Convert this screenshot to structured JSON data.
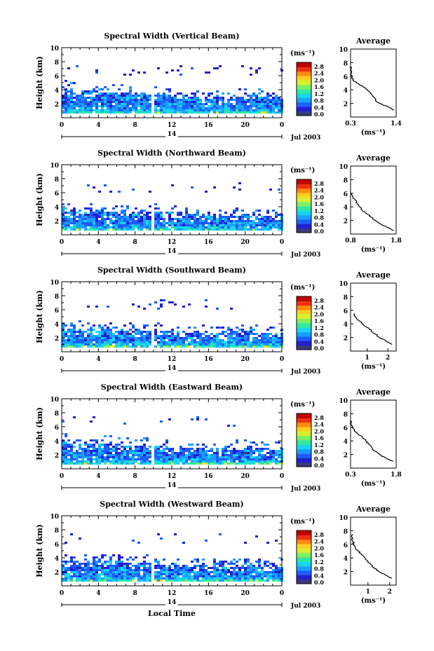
{
  "figure": {
    "xlabel": "Local Time",
    "date_label": "Jul 2003",
    "day_label": "14",
    "colorbar_unit": "(ms⁻¹)",
    "avg_xlabel": "(ms⁻¹)",
    "avg_title": "Average"
  },
  "chart_data": [
    {
      "type": "heatmap",
      "title": "Spectral Width (Vertical Beam)",
      "ylabel": "Height (km)",
      "xlabel": "",
      "xlim": [
        0,
        24
      ],
      "ylim": [
        0,
        10
      ],
      "x_ticks": [
        "0",
        "4",
        "8",
        "12",
        "16",
        "20",
        "0"
      ],
      "y_ticks": [
        "2",
        "4",
        "6",
        "8",
        "10"
      ],
      "colorbar": {
        "ticks": [
          "0.0",
          "0.4",
          "0.8",
          "1.2",
          "1.6",
          "2.0",
          "2.4",
          "2.8"
        ],
        "range": [
          0,
          2.8
        ]
      },
      "cloud_top_km": [
        4.3,
        4.1,
        4.0,
        3.9,
        3.8,
        3.8,
        3.9,
        3.6,
        3.5,
        3.6,
        3.7,
        3.4,
        3.3,
        3.2,
        3.2,
        3.1,
        3.0,
        3.0,
        3.1,
        3.2,
        3.3,
        3.1,
        3.0,
        2.9,
        2.9
      ],
      "average": {
        "title": "Average",
        "x_ticks": [
          "0.3",
          "1.4"
        ],
        "xlim": [
          0.3,
          1.4
        ],
        "ylim": [
          0,
          10
        ],
        "y_ticks": [
          "2",
          "4",
          "6",
          "8",
          "10"
        ],
        "profile_h": [
          1.0,
          1.5,
          2.0,
          2.5,
          3.0,
          3.5,
          4.0,
          4.5,
          5.0,
          5.5,
          6.0,
          6.5,
          7.0,
          7.5
        ],
        "profile_v": [
          1.35,
          1.2,
          1.0,
          0.9,
          0.85,
          0.78,
          0.7,
          0.6,
          0.45,
          0.35,
          0.33,
          0.32,
          0.31,
          0.3
        ]
      }
    },
    {
      "type": "heatmap",
      "title": "Spectral Width (Northward Beam)",
      "ylabel": "Height (km)",
      "xlabel": "",
      "xlim": [
        0,
        24
      ],
      "ylim": [
        0,
        10
      ],
      "x_ticks": [
        "0",
        "4",
        "8",
        "12",
        "16",
        "20",
        "0"
      ],
      "y_ticks": [
        "2",
        "4",
        "6",
        "8",
        "10"
      ],
      "colorbar": {
        "ticks": [
          "0.0",
          "0.4",
          "0.8",
          "1.2",
          "1.6",
          "2.0",
          "2.4",
          "2.8"
        ],
        "range": [
          0,
          2.8
        ]
      },
      "cloud_top_km": [
        3.8,
        3.6,
        3.5,
        3.5,
        3.6,
        3.5,
        3.5,
        3.4,
        3.3,
        3.5,
        3.6,
        3.5,
        3.3,
        3.1,
        3.0,
        2.9,
        2.8,
        2.8,
        2.9,
        3.0,
        3.1,
        3.0,
        2.9,
        2.9,
        2.9
      ],
      "average": {
        "title": "Average",
        "x_ticks": [
          "0.8",
          "1.8"
        ],
        "xlim": [
          0.8,
          1.8
        ],
        "ylim": [
          0,
          10
        ],
        "y_ticks": [
          "2",
          "4",
          "6",
          "8",
          "10"
        ],
        "profile_h": [
          0.5,
          1.0,
          1.5,
          2.0,
          2.5,
          3.0,
          3.5,
          4.0,
          4.5,
          5.0,
          5.5,
          6.0
        ],
        "profile_v": [
          1.75,
          1.6,
          1.45,
          1.35,
          1.25,
          1.15,
          1.05,
          1.0,
          0.95,
          0.9,
          0.85,
          0.82
        ]
      }
    },
    {
      "type": "heatmap",
      "title": "Spectral Width (Southward Beam)",
      "ylabel": "Height (km)",
      "xlabel": "",
      "xlim": [
        0,
        24
      ],
      "ylim": [
        0,
        10
      ],
      "x_ticks": [
        "0",
        "4",
        "8",
        "12",
        "16",
        "20",
        "0"
      ],
      "y_ticks": [
        "2",
        "4",
        "6",
        "8",
        "10"
      ],
      "colorbar": {
        "ticks": [
          "0.0",
          "0.4",
          "0.8",
          "1.2",
          "1.6",
          "2.0",
          "2.4",
          "2.8"
        ],
        "range": [
          0,
          2.8
        ]
      },
      "cloud_top_km": [
        3.6,
        3.5,
        3.4,
        3.4,
        3.5,
        3.6,
        3.5,
        3.3,
        3.2,
        3.3,
        3.4,
        3.2,
        3.1,
        3.0,
        2.9,
        2.8,
        2.8,
        2.7,
        2.8,
        2.9,
        3.0,
        2.9,
        2.8,
        2.8,
        2.8
      ],
      "average": {
        "title": "Average",
        "x_ticks": [
          "1",
          "2"
        ],
        "xlim": [
          0.2,
          2.4
        ],
        "ylim": [
          0,
          10
        ],
        "y_ticks": [
          "2",
          "4",
          "6",
          "8",
          "10"
        ],
        "profile_h": [
          1.0,
          1.5,
          2.0,
          2.5,
          3.0,
          3.5,
          4.0,
          4.5,
          5.0,
          5.5
        ],
        "profile_v": [
          2.2,
          1.9,
          1.6,
          1.4,
          1.2,
          1.0,
          0.8,
          0.6,
          0.45,
          0.35
        ]
      }
    },
    {
      "type": "heatmap",
      "title": "Spectral Width (Eastward Beam)",
      "ylabel": "Height (km)",
      "xlabel": "",
      "xlim": [
        0,
        24
      ],
      "ylim": [
        0,
        10
      ],
      "x_ticks": [
        "0",
        "4",
        "8",
        "12",
        "16",
        "20",
        "0"
      ],
      "y_ticks": [
        "2",
        "4",
        "6",
        "8",
        "10"
      ],
      "colorbar": {
        "ticks": [
          "0.0",
          "0.4",
          "0.8",
          "1.2",
          "1.6",
          "2.0",
          "2.4",
          "2.8"
        ],
        "range": [
          0,
          2.8
        ]
      },
      "cloud_top_km": [
        4.0,
        3.8,
        3.6,
        3.6,
        3.7,
        3.8,
        3.7,
        3.5,
        3.4,
        3.5,
        3.6,
        3.4,
        3.3,
        3.1,
        3.0,
        3.0,
        2.9,
        2.9,
        3.0,
        3.1,
        3.2,
        3.0,
        2.9,
        2.9,
        2.9
      ],
      "average": {
        "title": "Average",
        "x_ticks": [
          "0.3",
          "1.8"
        ],
        "xlim": [
          0.3,
          1.8
        ],
        "ylim": [
          0,
          10
        ],
        "y_ticks": [
          "2",
          "4",
          "6",
          "8",
          "10"
        ],
        "profile_h": [
          1.0,
          1.5,
          2.0,
          2.5,
          3.0,
          3.5,
          4.0,
          4.5,
          5.0,
          5.5,
          6.0,
          6.5,
          7.0
        ],
        "profile_v": [
          1.7,
          1.45,
          1.25,
          1.1,
          1.0,
          0.9,
          0.8,
          0.7,
          0.55,
          0.42,
          0.35,
          0.32,
          0.3
        ]
      }
    },
    {
      "type": "heatmap",
      "title": "Spectral Width (Westward Beam)",
      "ylabel": "Height (km)",
      "xlabel": "Local Time",
      "xlim": [
        0,
        24
      ],
      "ylim": [
        0,
        10
      ],
      "x_ticks": [
        "0",
        "4",
        "8",
        "12",
        "16",
        "20",
        "0"
      ],
      "y_ticks": [
        "2",
        "4",
        "6",
        "8",
        "10"
      ],
      "colorbar": {
        "ticks": [
          "0.0",
          "0.4",
          "0.8",
          "1.2",
          "1.6",
          "2.0",
          "2.4",
          "2.8"
        ],
        "range": [
          0,
          2.8
        ]
      },
      "cloud_top_km": [
        3.9,
        3.7,
        3.6,
        3.6,
        3.7,
        3.8,
        3.7,
        3.5,
        3.4,
        3.5,
        3.6,
        3.4,
        3.3,
        3.1,
        3.0,
        3.0,
        2.9,
        2.9,
        3.0,
        3.1,
        3.2,
        3.0,
        2.9,
        2.9,
        2.9
      ],
      "average": {
        "title": "Average",
        "x_ticks": [
          "1",
          "2"
        ],
        "xlim": [
          0.2,
          2.3
        ],
        "ylim": [
          0,
          10
        ],
        "y_ticks": [
          "2",
          "4",
          "6",
          "8",
          "10"
        ],
        "profile_h": [
          1.0,
          1.5,
          2.0,
          2.5,
          3.0,
          3.5,
          4.0,
          4.5,
          5.0,
          5.5,
          6.0,
          6.5,
          7.0,
          7.5
        ],
        "profile_v": [
          2.1,
          1.8,
          1.5,
          1.3,
          1.15,
          1.0,
          0.85,
          0.7,
          0.55,
          0.42,
          0.35,
          0.3,
          0.28,
          0.26
        ]
      }
    }
  ],
  "colors": {
    "colormap": [
      "#3a3a7a",
      "#2020d0",
      "#1e5cff",
      "#19a0ff",
      "#18d6f0",
      "#30e8a0",
      "#7ef060",
      "#d8f030",
      "#ffd020",
      "#ff8a10",
      "#f03010",
      "#c00000"
    ]
  }
}
